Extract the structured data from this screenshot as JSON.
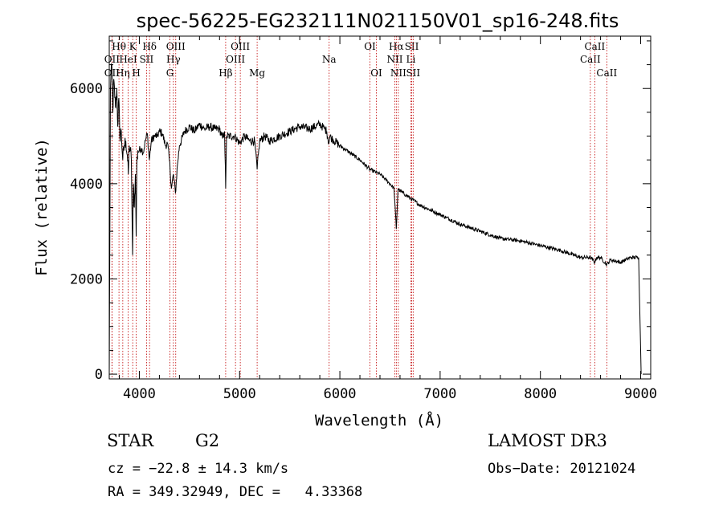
{
  "chart_data": {
    "type": "line",
    "title": "spec-56225-EG232111N021150V01_sp16-248.fits",
    "xlabel": "Wavelength (Å)",
    "ylabel": "Flux (relative)",
    "xlim": [
      3700,
      9100
    ],
    "ylim": [
      -100,
      7100
    ],
    "x_ticks": [
      4000,
      5000,
      6000,
      7000,
      8000,
      9000
    ],
    "x_tick_labels": [
      "4000",
      "5000",
      "6000",
      "7000",
      "8000",
      "9000"
    ],
    "y_ticks": [
      0,
      2000,
      4000,
      6000
    ],
    "y_tick_labels": [
      "0",
      "2000",
      "4000",
      "6000"
    ],
    "series": [
      {
        "name": "spectrum",
        "x": [
          3700,
          3712,
          3725,
          3735,
          3745,
          3755,
          3765,
          3775,
          3785,
          3795,
          3805,
          3820,
          3835,
          3850,
          3865,
          3880,
          3890,
          3900,
          3910,
          3920,
          3933,
          3940,
          3950,
          3960,
          3968,
          3975,
          3985,
          4000,
          4020,
          4040,
          4060,
          4080,
          4100,
          4120,
          4150,
          4180,
          4200,
          4230,
          4260,
          4280,
          4300,
          4320,
          4340,
          4360,
          4380,
          4400,
          4450,
          4500,
          4550,
          4600,
          4650,
          4700,
          4750,
          4800,
          4830,
          4850,
          4861,
          4870,
          4900,
          4950,
          5000,
          5050,
          5100,
          5150,
          5175,
          5200,
          5250,
          5300,
          5400,
          5500,
          5600,
          5700,
          5800,
          5850,
          5870,
          5890,
          5900,
          5920,
          6000,
          6100,
          6200,
          6300,
          6400,
          6500,
          6540,
          6563,
          6580,
          6600,
          6700,
          6800,
          6900,
          7000,
          7200,
          7400,
          7600,
          7800,
          8000,
          8200,
          8400,
          8500,
          8542,
          8560,
          8600,
          8662,
          8700,
          8800,
          8900,
          8980,
          9000,
          9005
        ],
        "values": [
          0,
          6000,
          6500,
          5500,
          6200,
          5800,
          5600,
          6000,
          5200,
          5800,
          5000,
          5100,
          4500,
          4800,
          4900,
          4600,
          4200,
          4800,
          4700,
          4500,
          2500,
          4000,
          3500,
          4200,
          2900,
          4400,
          4700,
          4700,
          4750,
          4650,
          4900,
          5050,
          4500,
          4900,
          5000,
          5000,
          5100,
          5050,
          4800,
          4850,
          4500,
          3900,
          4200,
          3800,
          4400,
          4800,
          5100,
          5200,
          5100,
          5250,
          5150,
          5200,
          5150,
          5150,
          4950,
          5100,
          3900,
          5000,
          5000,
          5000,
          4850,
          5000,
          4900,
          4900,
          4300,
          4900,
          5000,
          4900,
          5000,
          5100,
          5200,
          5150,
          5250,
          5150,
          5100,
          4850,
          5000,
          4950,
          4800,
          4650,
          4500,
          4300,
          4200,
          4000,
          3900,
          3050,
          3900,
          3850,
          3700,
          3550,
          3450,
          3350,
          3150,
          3000,
          2850,
          2800,
          2700,
          2600,
          2450,
          2450,
          2350,
          2450,
          2450,
          2300,
          2400,
          2350,
          2450,
          2450,
          500,
          0
        ]
      }
    ],
    "line_markers": [
      {
        "label": "OII",
        "x": 3727,
        "row": 2
      },
      {
        "label": "Hθ",
        "x": 3797,
        "row": 1
      },
      {
        "label": "OII",
        "x": 3727,
        "row": 3
      },
      {
        "label": "Hη",
        "x": 3835,
        "row": 3
      },
      {
        "label": "HeI",
        "x": 3889,
        "row": 2
      },
      {
        "label": "K",
        "x": 3934,
        "row": 1
      },
      {
        "label": "H",
        "x": 3969,
        "row": 3
      },
      {
        "label": "SII",
        "x": 4072,
        "row": 2
      },
      {
        "label": "Hδ",
        "x": 4102,
        "row": 1
      },
      {
        "label": "Hγ",
        "x": 4340,
        "row": 2
      },
      {
        "label": "OIII",
        "x": 4363,
        "row": 1
      },
      {
        "label": "G",
        "x": 4305,
        "row": 3
      },
      {
        "label": "Hβ",
        "x": 4861,
        "row": 3
      },
      {
        "label": "OIII",
        "x": 4959,
        "row": 2
      },
      {
        "label": "OIII",
        "x": 5007,
        "row": 1
      },
      {
        "label": "Mg",
        "x": 5175,
        "row": 3
      },
      {
        "label": "Na",
        "x": 5893,
        "row": 2
      },
      {
        "label": "OI",
        "x": 6300,
        "row": 1
      },
      {
        "label": "OI",
        "x": 6364,
        "row": 3
      },
      {
        "label": "Hα",
        "x": 6563,
        "row": 1
      },
      {
        "label": "NII",
        "x": 6548,
        "row": 2
      },
      {
        "label": "NII",
        "x": 6583,
        "row": 3
      },
      {
        "label": "SII",
        "x": 6717,
        "row": 1
      },
      {
        "label": "SII",
        "x": 6731,
        "row": 3
      },
      {
        "label": "Li",
        "x": 6708,
        "row": 2
      },
      {
        "label": "CaII",
        "x": 8498,
        "row": 2
      },
      {
        "label": "CaII",
        "x": 8542,
        "row": 1
      },
      {
        "label": "CaII",
        "x": 8662,
        "row": 3
      }
    ]
  },
  "info": {
    "object_type": "STAR",
    "subclass": "G2",
    "survey": "LAMOST DR3",
    "redshift_text": "cz = −22.8 ± 14.3 km/s",
    "obs_date": "Obs−Date: 20121024",
    "coords": "RA = 349.32949, DEC =   4.33368"
  }
}
